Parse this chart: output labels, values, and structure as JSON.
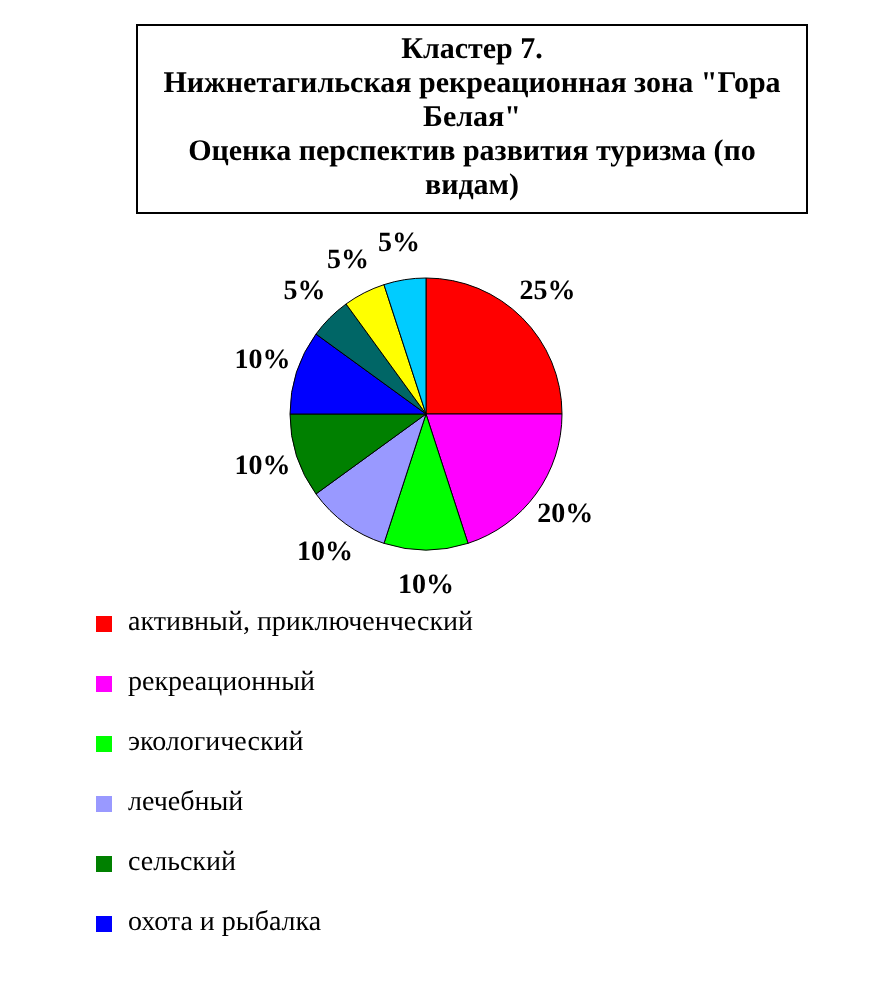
{
  "chart_data": {
    "type": "pie",
    "title": "Кластер 7.\nНижнетагильская рекреационная зона \"Гора Белая\"\nОценка перспектив развития туризма (по видам)",
    "categories": [
      "активный, приключенческий",
      "рекреационный",
      "экологический",
      "лечебный",
      "сельский",
      "охота и рыбалка",
      null,
      null,
      null
    ],
    "values": [
      25,
      20,
      10,
      10,
      10,
      10,
      5,
      5,
      5
    ],
    "value_labels": [
      "25%",
      "20%",
      "10%",
      "10%",
      "10%",
      "10%",
      "5%",
      "5%",
      "5%"
    ],
    "colors": [
      "#ff0000",
      "#ff00ff",
      "#00ff00",
      "#9999ff",
      "#008000",
      "#0000ff",
      "#006666",
      "#ffff00",
      "#00ccff"
    ],
    "legend": "bottom"
  }
}
